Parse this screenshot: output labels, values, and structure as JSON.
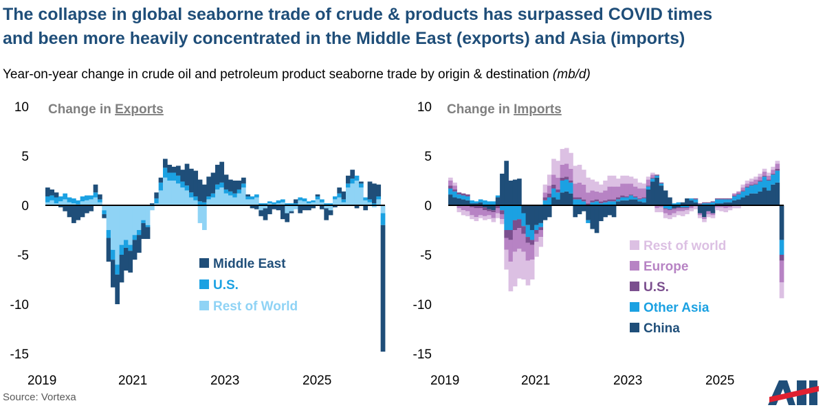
{
  "header": {
    "title_line1": "The collapse in global seaborne trade of crude & products has surpassed COVID times",
    "title_line2": "and been more heavily concentrated in the Middle East (exports) and Asia (imports)",
    "subtitle": "Year-on-year change in crude oil and petroleum product seaborne trade by origin & destination",
    "subtitle_unit": "(mb/d)"
  },
  "footer": {
    "source": "Source: Vortexa",
    "logo_text": "API"
  },
  "colors": {
    "middle_east": "#1f4e79",
    "us_exports": "#1ba1e2",
    "rest_of_world_exports": "#8fd3f5",
    "china": "#1f4e79",
    "other_asia": "#1ba1e2",
    "us_imports": "#7b4f8e",
    "europe": "#b783c4",
    "rest_of_world_imports": "#dcc0e3",
    "panel_title": "#7f7f7f",
    "axis_line": "#000000"
  },
  "chart_data": [
    {
      "type": "bar",
      "stacked": true,
      "panel_title_prefix": "Change in ",
      "panel_title_emphasis": "Exports",
      "x_ticks": [
        "2019",
        "2021",
        "2023",
        "2025"
      ],
      "y_ticks": [
        "10",
        "5",
        "0",
        "-5",
        "-10",
        "-15"
      ],
      "ylim": [
        -15,
        10
      ],
      "legend_position": "center",
      "series": [
        {
          "name": "Rest of World",
          "color": "#8fd3f5",
          "values": [
            0.3,
            0.5,
            0.2,
            0.4,
            0.6,
            0.3,
            0.2,
            0.1,
            0.4,
            0.5,
            0.6,
            0.8,
            0.3,
            -0.5,
            -2.5,
            -4.5,
            -6,
            -4,
            -3.5,
            -4,
            -3,
            -2.5,
            -1.5,
            -2,
            -0.5,
            0.2,
            1.5,
            2.8,
            2.5,
            2.5,
            2.2,
            1.8,
            1.5,
            0.8,
            0.5,
            -1.8,
            -2.5,
            0.6,
            0.8,
            1.6,
            1.8,
            1.2,
            1,
            0.8,
            1.2,
            1.8,
            0.6,
            0.6,
            0.8,
            -0.5,
            -0.3,
            0.2,
            0.1,
            0.2,
            0.3,
            -0.8,
            -0.6,
            -0.4,
            0.5,
            0.4,
            0.2,
            0.3,
            0.6,
            0.3,
            -0.3,
            -0.5,
            0.6,
            0.8,
            0.3,
            1.8,
            2.2,
            2.5,
            1.8,
            0.5,
            0.3,
            -0.2,
            0.6,
            -0.8
          ]
        },
        {
          "name": "U.S.",
          "color": "#1ba1e2",
          "values": [
            0.6,
            0.5,
            0.6,
            0.5,
            0.6,
            0.5,
            0.5,
            0.4,
            0.5,
            0.5,
            0.4,
            0.5,
            0.3,
            -0.4,
            -0.8,
            -1,
            -1,
            -1,
            -0.8,
            -0.6,
            -0.5,
            -0.5,
            -0.3,
            -0.2,
            0.1,
            0.5,
            0.8,
            1,
            0.8,
            0.8,
            0.8,
            0.6,
            0.5,
            0.5,
            0.4,
            0.4,
            0.3,
            0.3,
            0.4,
            0.5,
            0.5,
            0.4,
            0.4,
            0.4,
            0.4,
            0.4,
            0.3,
            0.3,
            0.3,
            0.2,
            0.2,
            0.2,
            0.2,
            0.3,
            0.3,
            0.2,
            0.2,
            0.2,
            0.3,
            0.3,
            0.2,
            0.2,
            0.3,
            0.3,
            0.2,
            0.2,
            0.3,
            0.4,
            0.3,
            0.4,
            0.5,
            0.5,
            0.4,
            0.3,
            0.3,
            0.2,
            0.3,
            -1.2
          ]
        },
        {
          "name": "Middle East",
          "color": "#1f4e79",
          "values": [
            0.9,
            0.6,
            0.5,
            -0.2,
            -0.6,
            -1.2,
            -1.8,
            -1.5,
            -1.2,
            -0.8,
            -0.6,
            0.8,
            0.5,
            -0.4,
            -2.4,
            -2.8,
            -3,
            -2.8,
            -2.3,
            -2.2,
            -2,
            -1.8,
            -1.6,
            -1.2,
            0.1,
            0.6,
            0.5,
            0.9,
            0.8,
            0.6,
            1,
            1.2,
            2.2,
            2.4,
            2.6,
            2.2,
            1.8,
            2,
            2.1,
            2,
            2.1,
            1.5,
            1.2,
            1.3,
            0.9,
            0.6,
            0.2,
            -0.3,
            -0.4,
            -0.6,
            -1.2,
            -0.9,
            -0.4,
            -0.5,
            -1.4,
            -0.9,
            -0.2,
            0.4,
            -0.8,
            -0.5,
            -0.5,
            -0.3,
            0.2,
            -0.4,
            -1.2,
            -0.5,
            -0.2,
            0.6,
            0.8,
            0.8,
            0.9,
            -0.3,
            0.2,
            -0.5,
            1.8,
            2,
            1.2,
            -12.8
          ]
        }
      ]
    },
    {
      "type": "bar",
      "stacked": true,
      "panel_title_prefix": "Change in ",
      "panel_title_emphasis": "Imports",
      "x_ticks": [
        "2019",
        "2021",
        "2023",
        "2025"
      ],
      "y_ticks": [
        "10",
        "5",
        "0",
        "-5",
        "-10",
        "-15"
      ],
      "ylim": [
        -15,
        10
      ],
      "legend_position": "center",
      "series": [
        {
          "name": "China",
          "color": "#1f4e79",
          "values": [
            1.1,
            0.8,
            0.7,
            0.6,
            0.5,
            0.2,
            0.2,
            0.3,
            -0.2,
            -0.4,
            -0.5,
            0.8,
            3.2,
            4.5,
            2.5,
            2.6,
            2.7,
            -0.8,
            -2,
            -2.5,
            -2,
            -1.8,
            -1.5,
            -1.2,
            0.8,
            0.6,
            1.3,
            1.4,
            1.2,
            -1.2,
            -0.9,
            -0.6,
            -1.5,
            -2.4,
            -2.8,
            -1.6,
            -1.2,
            -1,
            -1.2,
            0.4,
            0.5,
            0.5,
            0.6,
            0.6,
            0.4,
            0.3,
            1.6,
            2.4,
            2.8,
            2,
            1.5,
            0.8,
            -0.3,
            -0.2,
            0.3,
            0.7,
            0.5,
            0.3,
            -0.8,
            -1.2,
            -0.6,
            -0.8,
            0.2,
            0.2,
            0.3,
            0.3,
            0.5,
            0.6,
            0.8,
            1,
            1.2,
            1.2,
            1.4,
            1.8,
            1.5,
            2.1,
            2.3,
            -3.5
          ]
        },
        {
          "name": "Other Asia",
          "color": "#1ba1e2",
          "values": [
            0.6,
            0.6,
            0.4,
            0.4,
            0.4,
            0.3,
            0.2,
            0.3,
            0.5,
            0.4,
            0.4,
            0.2,
            -0.5,
            -2.5,
            -2.5,
            -1.5,
            -1.4,
            -1.3,
            -1.2,
            -1,
            -0.5,
            -0.4,
            0.5,
            0.8,
            0.9,
            0.7,
            1.2,
            1.2,
            1.1,
            0.6,
            0.6,
            0.4,
            -0.3,
            0.3,
            0.4,
            0.2,
            0.3,
            0.4,
            0.4,
            0.2,
            0.3,
            0.3,
            0.4,
            0.2,
            0.2,
            0.4,
            0.3,
            0.3,
            0.2,
            0.2,
            -0.3,
            -0.4,
            0.2,
            0.3,
            -0.2,
            -0.2,
            0.2,
            0.3,
            0.1,
            0.2,
            0.2,
            0.3,
            0.4,
            0.4,
            0.3,
            0.3,
            0.4,
            0.5,
            0.6,
            0.8,
            0.8,
            0.9,
            1,
            1.1,
            1,
            1,
            1.2,
            -1.5
          ]
        },
        {
          "name": "U.S.",
          "color": "#7b4f8e",
          "values": [
            0.3,
            0.2,
            0.2,
            0.2,
            0.2,
            -0.2,
            -0.3,
            -0.3,
            -0.3,
            -0.2,
            -0.2,
            -0.3,
            -0.4,
            -0.8,
            -1,
            -1,
            -0.9,
            -0.8,
            -0.6,
            -0.5,
            -0.4,
            -0.3,
            0.3,
            0.4,
            0.4,
            0.3,
            0.3,
            0.3,
            0.2,
            0.2,
            0.2,
            0.2,
            0.2,
            0.2,
            0.2,
            0.2,
            0.2,
            0.2,
            0.2,
            0.2,
            0.2,
            0.1,
            0.1,
            0.1,
            0.1,
            0.1,
            0.1,
            0.1,
            0.1,
            0.1,
            -0.1,
            -0.1,
            -0.1,
            -0.1,
            -0.1,
            -0.1,
            -0.1,
            0.1,
            0.1,
            0.1,
            0.1,
            0.1,
            0.1,
            0.1,
            0.1,
            0.1,
            0.1,
            0.1,
            0.1,
            0.1,
            0.1,
            0.1,
            0.1,
            0.1,
            0.1,
            0.1,
            0.2,
            -0.6
          ]
        },
        {
          "name": "Europe",
          "color": "#b783c4",
          "values": [
            0.5,
            0.4,
            -0.3,
            -0.5,
            -0.6,
            -0.8,
            -0.9,
            -0.7,
            -0.6,
            -0.4,
            -0.6,
            -0.5,
            -0.5,
            -1.2,
            -2.2,
            -2.2,
            -2.1,
            -1.8,
            -1.8,
            -1.5,
            -0.8,
            -0.7,
            0.5,
            0.8,
            1,
            1.2,
            1.3,
            1.3,
            1.2,
            1.4,
            1.5,
            1.5,
            1.1,
            1,
            0.8,
            0.9,
            1,
            1.3,
            1.3,
            1.1,
            1.2,
            1.3,
            1.1,
            1,
            1,
            0.9,
            0.6,
            0.3,
            -0.3,
            -0.2,
            -0.4,
            -0.5,
            -0.4,
            -0.3,
            -0.3,
            -0.2,
            -0.2,
            -0.1,
            -0.2,
            -0.2,
            -0.3,
            -0.2,
            -0.2,
            -0.2,
            -0.3,
            -0.2,
            0.2,
            0.2,
            0.3,
            0.3,
            0.3,
            0.4,
            0.4,
            0.4,
            0.4,
            0.4,
            0.5,
            -2.2
          ]
        },
        {
          "name": "Rest of world",
          "color": "#dcc0e3",
          "values": [
            0.3,
            0.3,
            -0.4,
            -0.5,
            -0.5,
            -0.4,
            -0.4,
            -0.3,
            -0.4,
            -0.4,
            -0.4,
            -0.5,
            -0.5,
            -2,
            -3,
            -3.5,
            -3,
            -2.8,
            -2.5,
            -2,
            -1.5,
            -1,
            0.8,
            1.1,
            1.6,
            1.7,
            1.6,
            1.6,
            1.6,
            1.8,
            1.8,
            1.5,
            1.5,
            1.1,
            1,
            0.8,
            1,
            1.1,
            1.1,
            0.8,
            0.8,
            0.8,
            0.7,
            0.8,
            0.6,
            0.5,
            0.3,
            0.2,
            -0.4,
            -0.5,
            -0.5,
            -0.4,
            -0.4,
            -0.4,
            -0.5,
            -0.4,
            -0.3,
            -0.3,
            -0.3,
            -0.3,
            -0.3,
            -0.3,
            -0.3,
            -0.4,
            -0.4,
            -0.3,
            -0.3,
            -0.3,
            0.3,
            0.3,
            0.3,
            0.3,
            0.3,
            0.3,
            0.3,
            0.3,
            0.3,
            -1.6
          ]
        }
      ]
    }
  ]
}
